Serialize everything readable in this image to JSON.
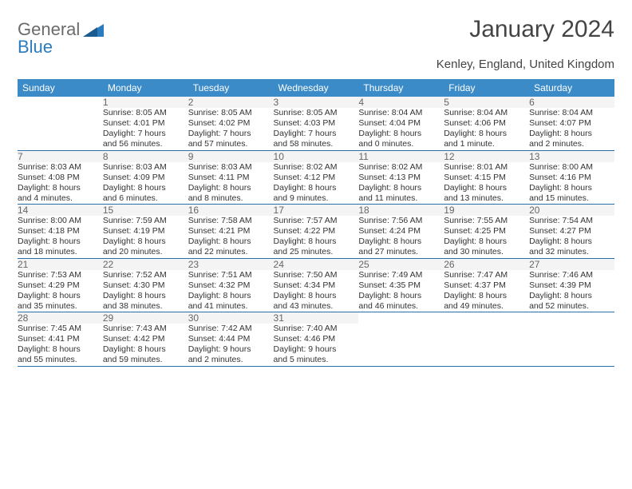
{
  "header": {
    "logo_text_1": "General",
    "logo_text_2": "Blue",
    "title": "January 2024",
    "location": "Kenley, England, United Kingdom"
  },
  "colors": {
    "header_bg": "#3b8bc8",
    "header_fg": "#ffffff",
    "daynum_bg": "#f4f4f4",
    "daynum_fg": "#666666",
    "row_divider": "#2b6fa8",
    "logo_gray": "#6b6b6b",
    "logo_blue": "#2b7bbf",
    "body_text": "#333333",
    "page_bg": "#ffffff"
  },
  "day_names": [
    "Sunday",
    "Monday",
    "Tuesday",
    "Wednesday",
    "Thursday",
    "Friday",
    "Saturday"
  ],
  "weeks": [
    [
      null,
      {
        "n": "1",
        "sr": "Sunrise: 8:05 AM",
        "ss": "Sunset: 4:01 PM",
        "d1": "Daylight: 7 hours",
        "d2": "and 56 minutes."
      },
      {
        "n": "2",
        "sr": "Sunrise: 8:05 AM",
        "ss": "Sunset: 4:02 PM",
        "d1": "Daylight: 7 hours",
        "d2": "and 57 minutes."
      },
      {
        "n": "3",
        "sr": "Sunrise: 8:05 AM",
        "ss": "Sunset: 4:03 PM",
        "d1": "Daylight: 7 hours",
        "d2": "and 58 minutes."
      },
      {
        "n": "4",
        "sr": "Sunrise: 8:04 AM",
        "ss": "Sunset: 4:04 PM",
        "d1": "Daylight: 8 hours",
        "d2": "and 0 minutes."
      },
      {
        "n": "5",
        "sr": "Sunrise: 8:04 AM",
        "ss": "Sunset: 4:06 PM",
        "d1": "Daylight: 8 hours",
        "d2": "and 1 minute."
      },
      {
        "n": "6",
        "sr": "Sunrise: 8:04 AM",
        "ss": "Sunset: 4:07 PM",
        "d1": "Daylight: 8 hours",
        "d2": "and 2 minutes."
      }
    ],
    [
      {
        "n": "7",
        "sr": "Sunrise: 8:03 AM",
        "ss": "Sunset: 4:08 PM",
        "d1": "Daylight: 8 hours",
        "d2": "and 4 minutes."
      },
      {
        "n": "8",
        "sr": "Sunrise: 8:03 AM",
        "ss": "Sunset: 4:09 PM",
        "d1": "Daylight: 8 hours",
        "d2": "and 6 minutes."
      },
      {
        "n": "9",
        "sr": "Sunrise: 8:03 AM",
        "ss": "Sunset: 4:11 PM",
        "d1": "Daylight: 8 hours",
        "d2": "and 8 minutes."
      },
      {
        "n": "10",
        "sr": "Sunrise: 8:02 AM",
        "ss": "Sunset: 4:12 PM",
        "d1": "Daylight: 8 hours",
        "d2": "and 9 minutes."
      },
      {
        "n": "11",
        "sr": "Sunrise: 8:02 AM",
        "ss": "Sunset: 4:13 PM",
        "d1": "Daylight: 8 hours",
        "d2": "and 11 minutes."
      },
      {
        "n": "12",
        "sr": "Sunrise: 8:01 AM",
        "ss": "Sunset: 4:15 PM",
        "d1": "Daylight: 8 hours",
        "d2": "and 13 minutes."
      },
      {
        "n": "13",
        "sr": "Sunrise: 8:00 AM",
        "ss": "Sunset: 4:16 PM",
        "d1": "Daylight: 8 hours",
        "d2": "and 15 minutes."
      }
    ],
    [
      {
        "n": "14",
        "sr": "Sunrise: 8:00 AM",
        "ss": "Sunset: 4:18 PM",
        "d1": "Daylight: 8 hours",
        "d2": "and 18 minutes."
      },
      {
        "n": "15",
        "sr": "Sunrise: 7:59 AM",
        "ss": "Sunset: 4:19 PM",
        "d1": "Daylight: 8 hours",
        "d2": "and 20 minutes."
      },
      {
        "n": "16",
        "sr": "Sunrise: 7:58 AM",
        "ss": "Sunset: 4:21 PM",
        "d1": "Daylight: 8 hours",
        "d2": "and 22 minutes."
      },
      {
        "n": "17",
        "sr": "Sunrise: 7:57 AM",
        "ss": "Sunset: 4:22 PM",
        "d1": "Daylight: 8 hours",
        "d2": "and 25 minutes."
      },
      {
        "n": "18",
        "sr": "Sunrise: 7:56 AM",
        "ss": "Sunset: 4:24 PM",
        "d1": "Daylight: 8 hours",
        "d2": "and 27 minutes."
      },
      {
        "n": "19",
        "sr": "Sunrise: 7:55 AM",
        "ss": "Sunset: 4:25 PM",
        "d1": "Daylight: 8 hours",
        "d2": "and 30 minutes."
      },
      {
        "n": "20",
        "sr": "Sunrise: 7:54 AM",
        "ss": "Sunset: 4:27 PM",
        "d1": "Daylight: 8 hours",
        "d2": "and 32 minutes."
      }
    ],
    [
      {
        "n": "21",
        "sr": "Sunrise: 7:53 AM",
        "ss": "Sunset: 4:29 PM",
        "d1": "Daylight: 8 hours",
        "d2": "and 35 minutes."
      },
      {
        "n": "22",
        "sr": "Sunrise: 7:52 AM",
        "ss": "Sunset: 4:30 PM",
        "d1": "Daylight: 8 hours",
        "d2": "and 38 minutes."
      },
      {
        "n": "23",
        "sr": "Sunrise: 7:51 AM",
        "ss": "Sunset: 4:32 PM",
        "d1": "Daylight: 8 hours",
        "d2": "and 41 minutes."
      },
      {
        "n": "24",
        "sr": "Sunrise: 7:50 AM",
        "ss": "Sunset: 4:34 PM",
        "d1": "Daylight: 8 hours",
        "d2": "and 43 minutes."
      },
      {
        "n": "25",
        "sr": "Sunrise: 7:49 AM",
        "ss": "Sunset: 4:35 PM",
        "d1": "Daylight: 8 hours",
        "d2": "and 46 minutes."
      },
      {
        "n": "26",
        "sr": "Sunrise: 7:47 AM",
        "ss": "Sunset: 4:37 PM",
        "d1": "Daylight: 8 hours",
        "d2": "and 49 minutes."
      },
      {
        "n": "27",
        "sr": "Sunrise: 7:46 AM",
        "ss": "Sunset: 4:39 PM",
        "d1": "Daylight: 8 hours",
        "d2": "and 52 minutes."
      }
    ],
    [
      {
        "n": "28",
        "sr": "Sunrise: 7:45 AM",
        "ss": "Sunset: 4:41 PM",
        "d1": "Daylight: 8 hours",
        "d2": "and 55 minutes."
      },
      {
        "n": "29",
        "sr": "Sunrise: 7:43 AM",
        "ss": "Sunset: 4:42 PM",
        "d1": "Daylight: 8 hours",
        "d2": "and 59 minutes."
      },
      {
        "n": "30",
        "sr": "Sunrise: 7:42 AM",
        "ss": "Sunset: 4:44 PM",
        "d1": "Daylight: 9 hours",
        "d2": "and 2 minutes."
      },
      {
        "n": "31",
        "sr": "Sunrise: 7:40 AM",
        "ss": "Sunset: 4:46 PM",
        "d1": "Daylight: 9 hours",
        "d2": "and 5 minutes."
      },
      null,
      null,
      null
    ]
  ]
}
